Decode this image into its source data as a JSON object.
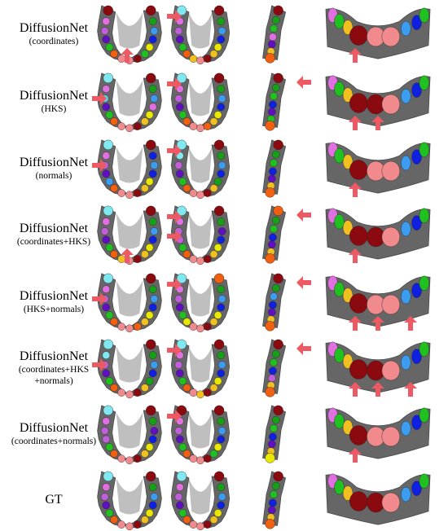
{
  "figure": {
    "rows": [
      {
        "title": "DiffusionNet",
        "subtitle": [
          "(coordinates)"
        ]
      },
      {
        "title": "DiffusionNet",
        "subtitle": [
          "(HKS)"
        ]
      },
      {
        "title": "DiffusionNet",
        "subtitle": [
          "(normals)"
        ]
      },
      {
        "title": "DiffusionNet",
        "subtitle": [
          "(coordinates+HKS)"
        ]
      },
      {
        "title": "DiffusionNet",
        "subtitle": [
          "(HKS+normals)"
        ]
      },
      {
        "title": "DiffusionNet",
        "subtitle": [
          "(coordinates+HKS",
          "+normals)"
        ]
      },
      {
        "title": "DiffusionNet",
        "subtitle": [
          "(coordinates+normals)"
        ]
      },
      {
        "title": "GT",
        "subtitle": []
      }
    ],
    "views": [
      "upper-arch-front",
      "upper-arch-rotated",
      "upper-arch-side",
      "anterior-view"
    ],
    "colors": {
      "gum": "#666666",
      "gum_dark": "#4a4a4a",
      "arrow": "#ee5a64",
      "tooth_palette": [
        "#8a0a10",
        "#f08a8c",
        "#f06010",
        "#f0c020",
        "#e8e800",
        "#20c020",
        "#16a016",
        "#3c9cf0",
        "#1020e0",
        "#6010c0",
        "#e070e0",
        "#c060d8",
        "#80e8f0",
        "#5ad0e8"
      ]
    },
    "arrows_per_row": [
      [
        {
          "v": 0,
          "dir": "up"
        },
        {
          "v": 1,
          "dir": "right"
        },
        {
          "v": 3,
          "dir": "up"
        }
      ],
      [
        {
          "v": 0,
          "dir": "right"
        },
        {
          "v": 1,
          "dir": "right"
        },
        {
          "v": 2,
          "dir": "left"
        },
        {
          "v": 3,
          "dir": "up"
        },
        {
          "v": 3,
          "dir": "up"
        }
      ],
      [
        {
          "v": 0,
          "dir": "right"
        },
        {
          "v": 1,
          "dir": "right"
        },
        {
          "v": 3,
          "dir": "up"
        }
      ],
      [
        {
          "v": 0,
          "dir": "up"
        },
        {
          "v": 1,
          "dir": "right"
        },
        {
          "v": 1,
          "dir": "right"
        },
        {
          "v": 2,
          "dir": "left"
        },
        {
          "v": 3,
          "dir": "up"
        }
      ],
      [
        {
          "v": 0,
          "dir": "right"
        },
        {
          "v": 1,
          "dir": "right"
        },
        {
          "v": 2,
          "dir": "left"
        },
        {
          "v": 3,
          "dir": "up"
        },
        {
          "v": 3,
          "dir": "up"
        },
        {
          "v": 3,
          "dir": "up"
        }
      ],
      [
        {
          "v": 0,
          "dir": "right"
        },
        {
          "v": 1,
          "dir": "right"
        },
        {
          "v": 2,
          "dir": "left"
        },
        {
          "v": 3,
          "dir": "up"
        },
        {
          "v": 3,
          "dir": "up"
        },
        {
          "v": 3,
          "dir": "up"
        }
      ],
      [
        {
          "v": 1,
          "dir": "right"
        },
        {
          "v": 3,
          "dir": "up"
        }
      ],
      []
    ]
  }
}
